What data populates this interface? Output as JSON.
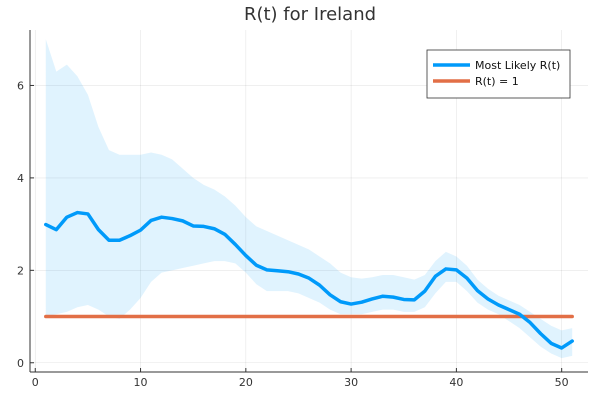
{
  "chart_data": {
    "type": "line",
    "title": "R(t) for Ireland",
    "xlabel": "",
    "ylabel": "",
    "xlim": [
      -0.5,
      52.5
    ],
    "ylim": [
      -0.2,
      7.2
    ],
    "xticks": [
      0,
      10,
      20,
      30,
      40,
      50
    ],
    "yticks": [
      0,
      2,
      4,
      6
    ],
    "grid": true,
    "legend_position": "top-right",
    "x": [
      1,
      2,
      3,
      4,
      5,
      6,
      7,
      8,
      9,
      10,
      11,
      12,
      13,
      14,
      15,
      16,
      17,
      18,
      19,
      20,
      21,
      22,
      23,
      24,
      25,
      26,
      27,
      28,
      29,
      30,
      31,
      32,
      33,
      34,
      35,
      36,
      37,
      38,
      39,
      40,
      41,
      42,
      43,
      44,
      45,
      46,
      47,
      48,
      49,
      50,
      51
    ],
    "band": {
      "upper": [
        7.0,
        6.3,
        6.45,
        6.2,
        5.8,
        5.1,
        4.6,
        4.5,
        4.5,
        4.5,
        4.55,
        4.5,
        4.4,
        4.2,
        4.0,
        3.85,
        3.75,
        3.6,
        3.4,
        3.15,
        2.95,
        2.85,
        2.75,
        2.65,
        2.55,
        2.45,
        2.3,
        2.15,
        1.95,
        1.85,
        1.82,
        1.85,
        1.9,
        1.9,
        1.85,
        1.8,
        1.9,
        2.2,
        2.4,
        2.3,
        2.1,
        1.8,
        1.6,
        1.45,
        1.35,
        1.25,
        1.1,
        0.95,
        0.8,
        0.7,
        0.75
      ],
      "lower": [
        1.0,
        1.05,
        1.1,
        1.2,
        1.25,
        1.15,
        1.0,
        0.95,
        1.15,
        1.4,
        1.75,
        1.95,
        2.0,
        2.05,
        2.1,
        2.15,
        2.2,
        2.2,
        2.15,
        1.95,
        1.7,
        1.55,
        1.55,
        1.55,
        1.5,
        1.4,
        1.3,
        1.15,
        1.05,
        1.05,
        1.05,
        1.1,
        1.15,
        1.15,
        1.1,
        1.1,
        1.2,
        1.5,
        1.75,
        1.75,
        1.55,
        1.3,
        1.15,
        1.05,
        0.9,
        0.75,
        0.55,
        0.35,
        0.2,
        0.1,
        0.15
      ]
    },
    "series": [
      {
        "name": "Most Likely R(t)",
        "color": "#009AFA",
        "values": [
          2.99,
          2.88,
          3.15,
          3.25,
          3.22,
          2.88,
          2.65,
          2.65,
          2.75,
          2.87,
          3.08,
          3.15,
          3.12,
          3.07,
          2.96,
          2.95,
          2.9,
          2.78,
          2.56,
          2.32,
          2.11,
          2.01,
          1.99,
          1.97,
          1.92,
          1.83,
          1.68,
          1.47,
          1.32,
          1.27,
          1.31,
          1.38,
          1.44,
          1.42,
          1.37,
          1.36,
          1.55,
          1.87,
          2.03,
          2.01,
          1.83,
          1.56,
          1.38,
          1.25,
          1.15,
          1.05,
          0.87,
          0.63,
          0.42,
          0.32,
          0.47
        ]
      },
      {
        "name": "R(t) = 1",
        "color": "#E26F46",
        "values": [
          1,
          1,
          1,
          1,
          1,
          1,
          1,
          1,
          1,
          1,
          1,
          1,
          1,
          1,
          1,
          1,
          1,
          1,
          1,
          1,
          1,
          1,
          1,
          1,
          1,
          1,
          1,
          1,
          1,
          1,
          1,
          1,
          1,
          1,
          1,
          1,
          1,
          1,
          1,
          1,
          1,
          1,
          1,
          1,
          1,
          1,
          1,
          1,
          1,
          1,
          1
        ]
      }
    ],
    "band_color": "#009AFA"
  }
}
